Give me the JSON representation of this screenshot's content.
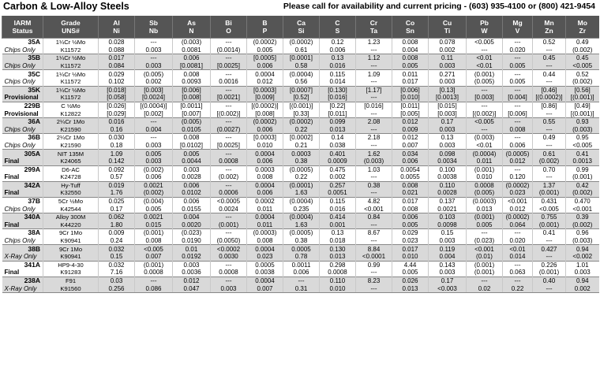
{
  "header": {
    "title": "Carbon & Low-Alloy Steels",
    "pricing": "Please call for availability and current pricing - (603) 935-4100 or (800) 421-9454"
  },
  "columns": [
    [
      "IARM",
      "Status"
    ],
    [
      "Grade",
      "UNS#"
    ],
    [
      "Al",
      "Ni"
    ],
    [
      "Sb",
      "Nb"
    ],
    [
      "As",
      "N"
    ],
    [
      "Bi",
      "O"
    ],
    [
      "B",
      "P"
    ],
    [
      "Ca",
      "Si"
    ],
    [
      "C",
      "S"
    ],
    [
      "Cr",
      "Ta"
    ],
    [
      "Co",
      "Sn"
    ],
    [
      "Cu",
      "Ti"
    ],
    [
      "Pb",
      "W"
    ],
    [
      "Mg",
      "V"
    ],
    [
      "Mn",
      "Zn"
    ],
    [
      "Mo",
      "Zr"
    ]
  ],
  "rows": [
    {
      "id": "35A",
      "status": "Chips Only",
      "grade": "1¼Cr ½Mo",
      "uns": "K11572",
      "a": [
        "0.028",
        "---",
        "(0.003)",
        "---",
        "(0.0002)",
        "(0.0002)",
        "0.12",
        "1.23",
        "0.008",
        "0.078",
        "<0.005",
        "---",
        "0.52",
        "0.49"
      ],
      "b": [
        "0.088",
        "0.003",
        "0.0081",
        "(0.0014)",
        "0.005",
        "0.61",
        "0.006",
        "---",
        "0.004",
        "0.002",
        "---",
        "0.020",
        "---",
        "(0.002)"
      ]
    },
    {
      "id": "35B",
      "status": "Chips Only",
      "grade": "1¼Cr ½Mo",
      "uns": "K11572",
      "a": [
        "0.017",
        "---",
        "0.006",
        "---",
        "[0.0005]",
        "[0.0001]",
        "0.13",
        "1.12",
        "0.008",
        "0.11",
        "<0.01",
        "---",
        "0.45",
        "0.45"
      ],
      "b": [
        "0.084",
        "0.003",
        "[0.0081]",
        "[0.0025]",
        "0.006",
        "0.58",
        "0.016",
        "---",
        "0.005",
        "0.003",
        "<0.01",
        "0.005",
        "---",
        "<0.005"
      ]
    },
    {
      "id": "35C",
      "status": "Chips Only",
      "grade": "1¼Cr ½Mo",
      "uns": "K11572",
      "a": [
        "0.029",
        "(0.005)",
        "0.008",
        "---",
        "0.0004",
        "(0.0004)",
        "0.115",
        "1.09",
        "0.011",
        "0.271",
        "(0.001)",
        "---",
        "0.44",
        "0.52"
      ],
      "b": [
        "0.102",
        "0.002",
        "0.0093",
        "0.0016",
        "0.012",
        "0.56",
        "0.014",
        "---",
        "0.017",
        "0.003",
        "(0.005)",
        "0.005",
        "---",
        "(0.002)"
      ]
    },
    {
      "id": "35K",
      "status": "Provisional",
      "grade": "1¼Cr ½Mo",
      "uns": "K11572",
      "a": [
        "[0.018]",
        "[0.003]",
        "[0.006]",
        "---",
        "[0.0003]",
        "[0.0007]",
        "[0.130]",
        "[1.17]",
        "[0.006]",
        "[0.13]",
        "---",
        "---",
        "[0.46]",
        "[0.56]"
      ],
      "b": [
        "[0.058]",
        "[0.0024]",
        "[0.008]",
        "[0.0021]",
        "[0.009]",
        "[0.52]",
        "[0.016]",
        "---",
        "[0.010]",
        "[0.0013]",
        "[0.003]",
        "[0.004]",
        "[(0.0002)]",
        "[(0.001)]"
      ]
    },
    {
      "id": "229B",
      "status": "Provisional",
      "grade": "C ½Mo",
      "uns": "K12822",
      "a": [
        "[0.026]",
        "[(0.0004)]",
        "[0.0011]",
        "---",
        "[(0.0002)]",
        "[(0.001)]",
        "[0.22]",
        "[0.016]",
        "[0.011]",
        "[0.015]",
        "---",
        "---",
        "[0.86]",
        "[0.49]"
      ],
      "b": [
        "[0.029]",
        "[0.002]",
        "[0.007]",
        "[(0.002)]",
        "[0.008]",
        "[0.33]",
        "[0.011]",
        "---",
        "[0.005]",
        "[0.003]",
        "[(0.002)]",
        "[0.006]",
        "---",
        "[(0.001)]"
      ]
    },
    {
      "id": "36A",
      "status": "Chips Only",
      "grade": "2¼Cr 1Mo",
      "uns": "K21590",
      "a": [
        "0.016",
        "---",
        "(0.005)",
        "---",
        "(0.0002)",
        "(0.0002)",
        "0.099",
        "2.08",
        "0.012",
        "0.17",
        "<0.005",
        "---",
        "0.55",
        "0.93"
      ],
      "b": [
        "0.16",
        "0.004",
        "0.0105",
        "(0.0027)",
        "0.006",
        "0.22",
        "0.013",
        "---",
        "0.009",
        "0.003",
        "---",
        "0.008",
        "---",
        "(0.003)"
      ]
    },
    {
      "id": "36B",
      "status": "Chips Only",
      "grade": "2¼Cr 1Mo",
      "uns": "K21590",
      "a": [
        "0.030",
        "---",
        "0.008",
        "---",
        "[0.0003]",
        "[0.0002]",
        "0.14",
        "2.18",
        "0.012",
        "0.13",
        "(0.003)",
        "---",
        "0.49",
        "0.95"
      ],
      "b": [
        "0.18",
        "0.003",
        "[0.0102]",
        "[0.0025]",
        "0.010",
        "0.21",
        "0.038",
        "---",
        "0.007",
        "0.003",
        "<0.01",
        "0.006",
        "---",
        "<0.005"
      ]
    },
    {
      "id": "305A",
      "status": "Final",
      "grade": "NIT 135M",
      "uns": "K24065",
      "a": [
        "1.09",
        "0.005",
        "0.005",
        "---",
        "0.0004",
        "0.0003",
        "0.401",
        "1.62",
        "0.034",
        "0.098",
        "(0.0004)",
        "(0.0005)",
        "0.61",
        "0.41"
      ],
      "b": [
        "0.142",
        "0.003",
        "0.0044",
        "0.0008",
        "0.006",
        "0.38",
        "0.0009",
        "(0.003)",
        "0.006",
        "0.0034",
        "0.011",
        "0.012",
        "(0.002)",
        "0.0013"
      ]
    },
    {
      "id": "299A",
      "status": "Final",
      "grade": "D6-AC",
      "uns": "K24728",
      "a": [
        "0.092",
        "(0.002)",
        "0.003",
        "---",
        "0.0003",
        "(0.0005)",
        "0.475",
        "1.03",
        "0.0054",
        "0.100",
        "(0.001)",
        "---",
        "0.70",
        "0.99"
      ],
      "b": [
        "0.57",
        "0.006",
        "0.0028",
        "(0.002)",
        "0.008",
        "0.22",
        "0.002",
        "---",
        "0.0055",
        "0.0038",
        "0.010",
        "0.120",
        "---",
        "(0.001)"
      ]
    },
    {
      "id": "342A",
      "status": "Final",
      "grade": "Hy-Tuff",
      "uns": "K32550",
      "a": [
        "0.019",
        "0.0021",
        "0.006",
        "---",
        "0.0004",
        "(0.0001)",
        "0.257",
        "0.38",
        "0.008",
        "0.110",
        "0.0008",
        "(0.0002)",
        "1.37",
        "0.42"
      ],
      "b": [
        "1.76",
        "(0.002)",
        "0.0102",
        "0.0006",
        "0.006",
        "1.63",
        "0.0051",
        "---",
        "0.021",
        "0.0028",
        "(0.005)",
        "0.023",
        "(0.001)",
        "(0.002)"
      ]
    },
    {
      "id": "37B",
      "status": "Chips Only",
      "grade": "5Cr ½Mo",
      "uns": "K42544",
      "a": [
        "0.025",
        "(0.004)",
        "0.006",
        "<0.0005",
        "0.0002",
        "(0.0004)",
        "0.115",
        "4.82",
        "0.017",
        "0.137",
        "(0.0003)",
        "<0.001",
        "0.431",
        "0.470"
      ],
      "b": [
        "0.17",
        "0.005",
        "0.0155",
        "0.0024",
        "0.011",
        "0.235",
        "0.016",
        "<0.001",
        "0.008",
        "0.0021",
        "0.013",
        "0.012",
        "<0.005",
        "<0.001"
      ]
    },
    {
      "id": "340A",
      "status": "Final",
      "grade": "Alloy 300M",
      "uns": "K44220",
      "a": [
        "0.062",
        "0.0021",
        "0.004",
        "---",
        "0.0004",
        "(0.0004)",
        "0.414",
        "0.84",
        "0.006",
        "0.103",
        "(0.001)",
        "(0.0002)",
        "0.755",
        "0.39"
      ],
      "b": [
        "1.80",
        "0.015",
        "0.0020",
        "(0.001)",
        "0.011",
        "1.63",
        "0.001",
        "---",
        "0.005",
        "0.0098",
        "0.005",
        "0.064",
        "(0.001)",
        "(0.002)"
      ]
    },
    {
      "id": "38A",
      "status": "Chips Only",
      "grade": "9Cr 1Mo",
      "uns": "K90941",
      "a": [
        "0.009",
        "(0.001)",
        "(0.023)",
        "---",
        "(0.0003)",
        "(0.0005)",
        "0.13",
        "8.67",
        "0.029",
        "0.15",
        "---",
        "---",
        "0.41",
        "0.96"
      ],
      "b": [
        "0.24",
        "0.008",
        "0.0190",
        "(0.0050)",
        "0.008",
        "0.38",
        "0.018",
        "---",
        "0.023",
        "0.003",
        "(0.023)",
        "0.020",
        "---",
        "(0.003)"
      ]
    },
    {
      "id": "38B",
      "status": "X-Ray Only",
      "grade": "9Cr 1Mo",
      "uns": "K90941",
      "a": [
        "0.032",
        "<0.005",
        "0.01",
        "<0.0002",
        "0.0004",
        "0.0005",
        "0.130",
        "8.84",
        "0.017",
        "0.119",
        "<0.001",
        "<0.01",
        "0.427",
        "0.94"
      ],
      "b": [
        "0.15",
        "0.007",
        "0.0192",
        "0.0030",
        "0.023",
        "0.78",
        "0.013",
        "<0.0001",
        "0.010",
        "0.004",
        "(0.01)",
        "0.014",
        "---",
        "<0.002"
      ]
    },
    {
      "id": "341A",
      "status": "Final",
      "grade": "HP9-4-30",
      "uns": "K91283",
      "a": [
        "0.032",
        "(0.001)",
        "0.003",
        "---",
        "0.0005",
        "0.0011",
        "0.298",
        "0.99",
        "4.44",
        "0.143",
        "(0.001)",
        "---",
        "0.226",
        "1.01"
      ],
      "b": [
        "7.16",
        "0.0008",
        "0.0036",
        "0.0008",
        "0.0038",
        "0.006",
        "0.0008",
        "---",
        "0.005",
        "0.003",
        "(0.001)",
        "0.063",
        "(0.001)",
        "0.003"
      ]
    },
    {
      "id": "238A",
      "status": "X-Ray Only",
      "grade": "F91",
      "uns": "K91560",
      "a": [
        "0.03",
        "---",
        "0.012",
        "---",
        "0.0004",
        "---",
        "0.110",
        "8.23",
        "0.026",
        "0.17",
        "---",
        "---",
        "0.40",
        "0.94"
      ],
      "b": [
        "0.256",
        "0.086",
        "0.047",
        "0.003",
        "0.007",
        "0.31",
        "0.010",
        "---",
        "0.013",
        "<0.003",
        "0.02",
        "0.22",
        "---",
        "0.002"
      ]
    }
  ]
}
